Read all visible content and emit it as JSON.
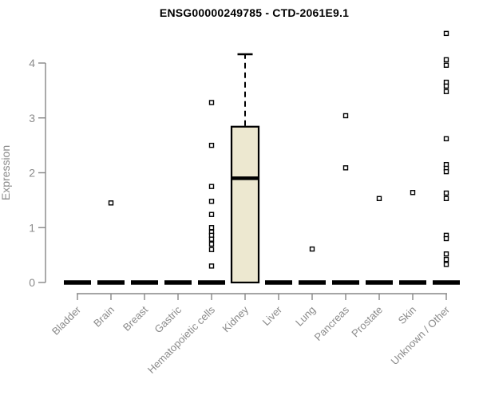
{
  "chart_data": {
    "type": "boxplot",
    "title": "ENSG00000249785 - CTD-2061E9.1",
    "ylabel": "Expression",
    "xlabel": "",
    "ylim": [
      0,
      4.6
    ],
    "yticks": [
      0,
      1,
      2,
      3,
      4
    ],
    "grid": false,
    "legend": false,
    "categories": [
      "Bladder",
      "Brain",
      "Breast",
      "Gastric",
      "Hematopoietic cells",
      "Kidney",
      "Liver",
      "Lung",
      "Pancreas",
      "Prostate",
      "Skin",
      "Unknown / Other"
    ],
    "boxes": [
      {
        "category": "Bladder",
        "q1": 0,
        "median": 0,
        "q3": 0,
        "whisker_low": 0,
        "whisker_high": 0,
        "outliers": []
      },
      {
        "category": "Brain",
        "q1": 0,
        "median": 0,
        "q3": 0,
        "whisker_low": 0,
        "whisker_high": 0,
        "outliers": [
          1.45
        ]
      },
      {
        "category": "Breast",
        "q1": 0,
        "median": 0,
        "q3": 0,
        "whisker_low": 0,
        "whisker_high": 0,
        "outliers": []
      },
      {
        "category": "Gastric",
        "q1": 0,
        "median": 0,
        "q3": 0,
        "whisker_low": 0,
        "whisker_high": 0,
        "outliers": []
      },
      {
        "category": "Hematopoietic cells",
        "q1": 0,
        "median": 0,
        "q3": 0,
        "whisker_low": 0,
        "whisker_high": 0,
        "outliers": [
          3.28,
          2.5,
          1.75,
          1.48,
          1.24,
          1.0,
          0.92,
          0.86,
          0.79,
          0.7,
          0.6,
          0.3
        ]
      },
      {
        "category": "Kidney",
        "q1": 0,
        "median": 1.9,
        "q3": 2.84,
        "whisker_low": 0,
        "whisker_high": 4.16,
        "outliers": []
      },
      {
        "category": "Liver",
        "q1": 0,
        "median": 0,
        "q3": 0,
        "whisker_low": 0,
        "whisker_high": 0,
        "outliers": []
      },
      {
        "category": "Lung",
        "q1": 0,
        "median": 0,
        "q3": 0,
        "whisker_low": 0,
        "whisker_high": 0,
        "outliers": [
          0.61
        ]
      },
      {
        "category": "Pancreas",
        "q1": 0,
        "median": 0,
        "q3": 0,
        "whisker_low": 0,
        "whisker_high": 0,
        "outliers": [
          3.04,
          2.09
        ]
      },
      {
        "category": "Prostate",
        "q1": 0,
        "median": 0,
        "q3": 0,
        "whisker_low": 0,
        "whisker_high": 0,
        "outliers": [
          1.53
        ]
      },
      {
        "category": "Skin",
        "q1": 0,
        "median": 0,
        "q3": 0,
        "whisker_low": 0,
        "whisker_high": 0,
        "outliers": [
          1.64
        ]
      },
      {
        "category": "Unknown / Other",
        "q1": 0,
        "median": 0,
        "q3": 0,
        "whisker_low": 0,
        "whisker_high": 0,
        "outliers": [
          4.54,
          4.06,
          3.96,
          3.65,
          3.58,
          3.48,
          2.62,
          2.15,
          2.08,
          2.02,
          1.63,
          1.53,
          0.86,
          0.8,
          0.52,
          0.42,
          0.33
        ]
      }
    ],
    "colors": {
      "background": "#FFFFFF",
      "box_fill": "#EDE8D0",
      "box_stroke": "#000000",
      "median": "#000000",
      "whisker": "#000000",
      "outlier_stroke": "#000000",
      "outlier_fill": "#FFFFFF",
      "axis": "#878787",
      "tick_label": "#8A8A8A",
      "title": "#000000"
    }
  }
}
